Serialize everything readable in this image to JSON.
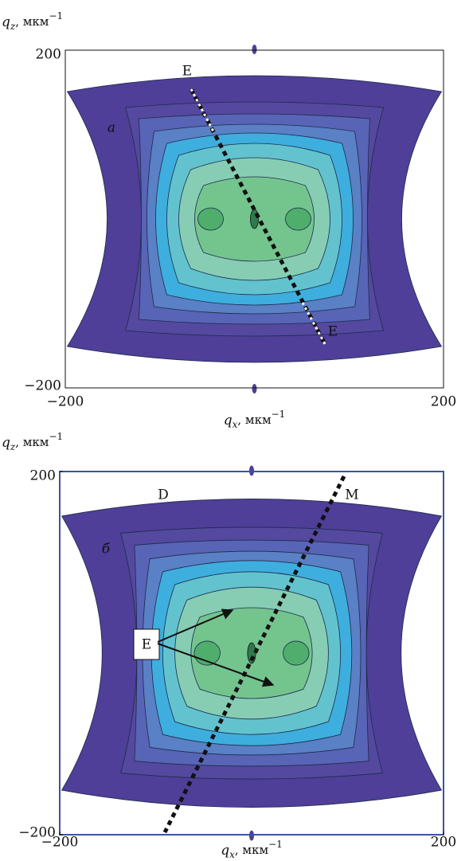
{
  "chart_data": [
    {
      "type": "contour",
      "panel_label": "a",
      "x_label_symbol": "q",
      "x_label_subscript": "x",
      "x_label_unit": ", мкм",
      "x_label_superscript": "−1",
      "y_label_symbol": "q",
      "y_label_subscript": "z",
      "y_label_unit": ", мкм",
      "y_label_superscript": "−1",
      "xlim": [
        -200,
        200
      ],
      "ylim": [
        -200,
        200
      ],
      "xticks": [
        {
          "value": -200,
          "label": "−200"
        },
        200
      ],
      "yticks": [
        {
          "value": -200,
          "label": "−200"
        },
        200
      ],
      "annotations": [
        "E",
        "E"
      ]
    },
    {
      "type": "contour",
      "panel_label": "б",
      "x_label_symbol": "q",
      "x_label_subscript": "x",
      "x_label_unit": ", мкм",
      "x_label_superscript": "−1",
      "y_label_symbol": "q",
      "y_label_subscript": "z",
      "y_label_unit": ", мкм",
      "y_label_superscript": "−1",
      "xlim": [
        -200,
        200
      ],
      "ylim": [
        -200,
        200
      ],
      "xticks": [
        {
          "value": -200,
          "label": "−200"
        },
        200
      ],
      "yticks": [
        {
          "value": -200,
          "label": "−200"
        },
        200
      ],
      "annotations": [
        "D",
        "M",
        "E"
      ]
    }
  ]
}
